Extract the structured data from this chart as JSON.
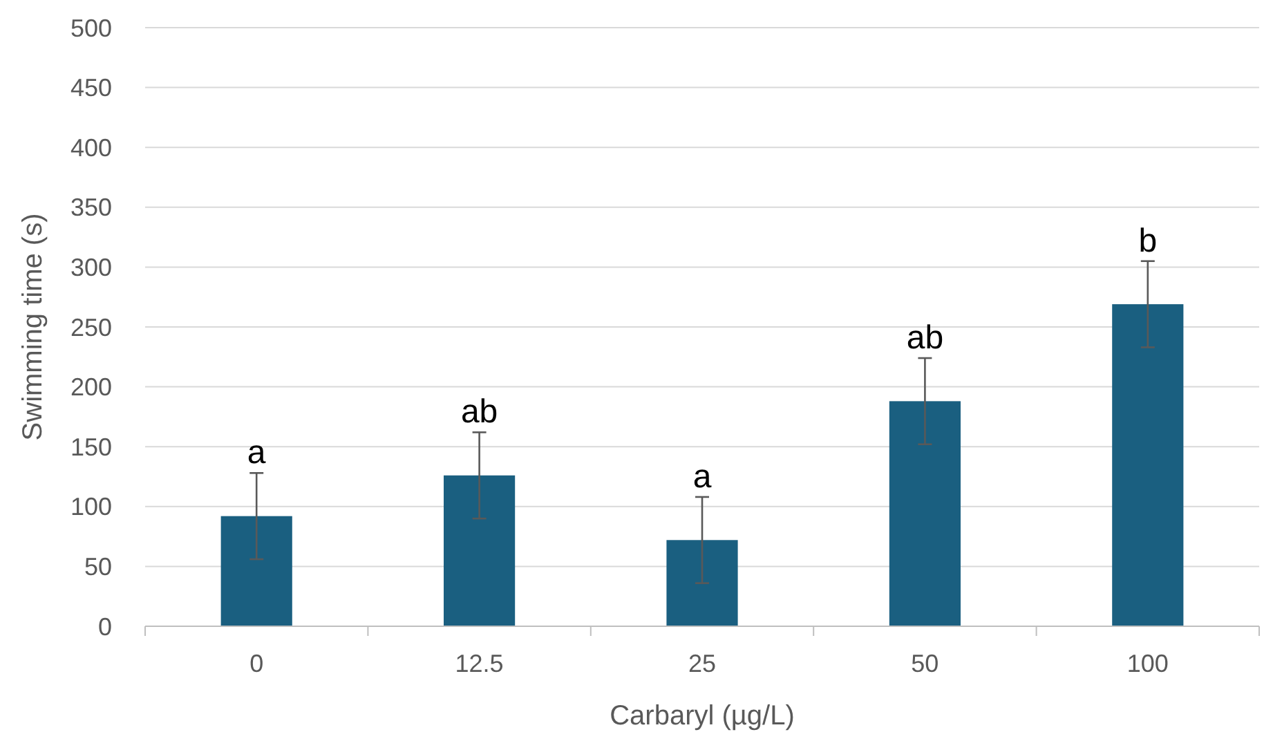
{
  "chart_data": {
    "type": "bar",
    "xlabel": "Carbaryl (µg/L)",
    "ylabel": "Swimming time (s)",
    "categories": [
      "0",
      "12.5",
      "25",
      "50",
      "100"
    ],
    "values": [
      92,
      126,
      72,
      188,
      269
    ],
    "errors": [
      36,
      36,
      36,
      36,
      36
    ],
    "color": "#1a5f80",
    "ylim": [
      0,
      500
    ],
    "yticks": [
      0,
      50,
      100,
      150,
      200,
      250,
      300,
      350,
      400,
      450,
      500
    ],
    "grid": "y",
    "annotations": [
      {
        "text": "a",
        "x": "0",
        "y": 128
      },
      {
        "text": "ab",
        "x": "12.5",
        "y": 162
      },
      {
        "text": "a",
        "x": "25",
        "y": 108
      },
      {
        "text": "ab",
        "x": "50",
        "y": 224
      },
      {
        "text": "b",
        "x": "100",
        "y": 305
      }
    ]
  }
}
